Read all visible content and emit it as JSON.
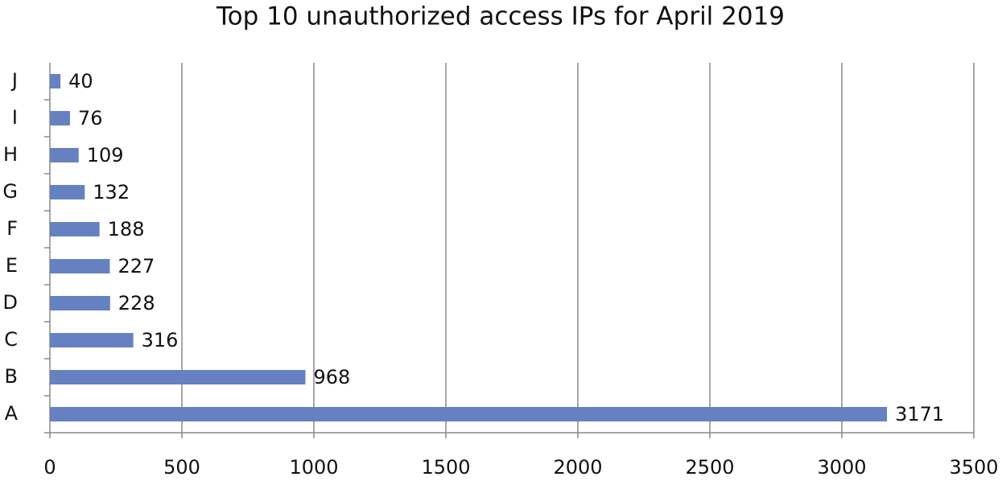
{
  "chart_data": {
    "type": "hbar",
    "title": "Top 10 unauthorized access IPs for April 2019",
    "categories": [
      "A",
      "B",
      "C",
      "D",
      "E",
      "F",
      "G",
      "H",
      "I",
      "J"
    ],
    "values": [
      3171,
      968,
      316,
      228,
      227,
      188,
      132,
      109,
      76,
      40
    ],
    "color": "#6581c2",
    "xlim": [
      0,
      3500
    ],
    "xticks": [
      0,
      500,
      1000,
      1500,
      2000,
      2500,
      3000,
      3500
    ],
    "grid": true
  }
}
